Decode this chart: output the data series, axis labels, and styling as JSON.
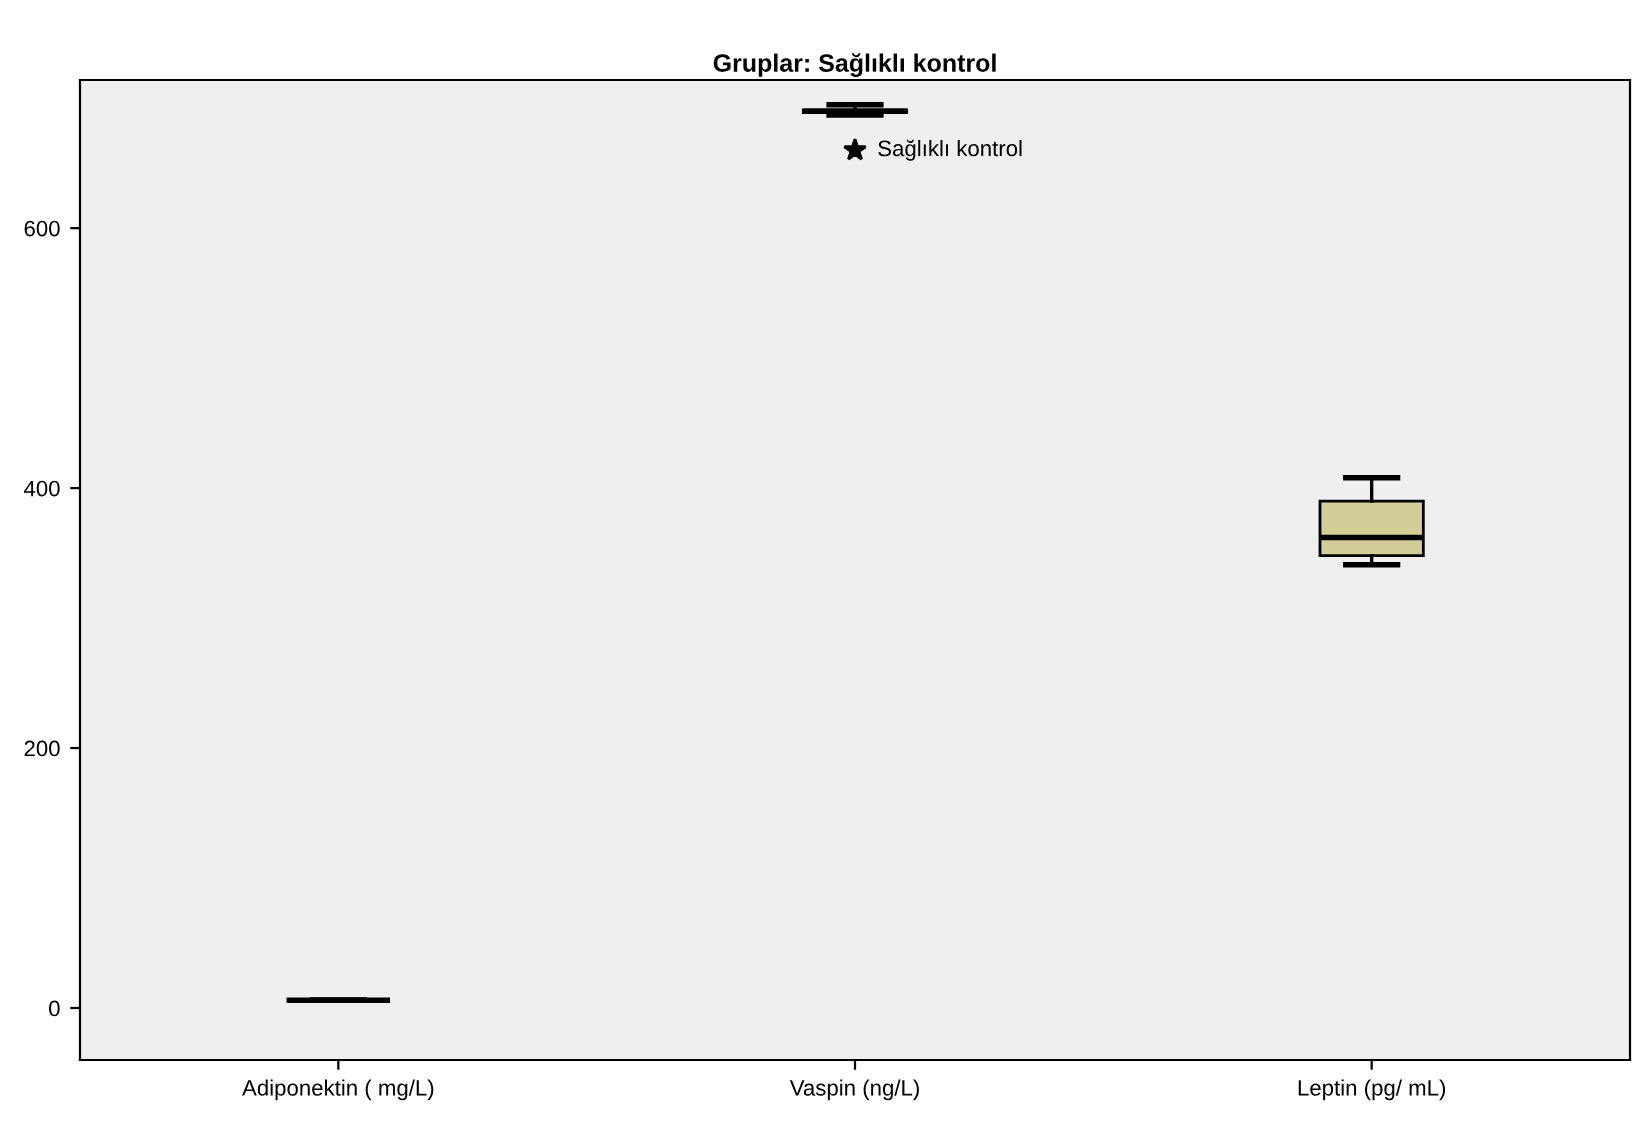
{
  "chart_data": {
    "type": "box",
    "title": "Gruplar: Sağlıklı kontrol",
    "categories": [
      "Adiponektin ( mg/L)",
      "Vaspin (ng/L)",
      "Leptin (pg/ mL)"
    ],
    "colors": [
      "#000000",
      "#000000",
      "#d3ce97"
    ],
    "boxes": [
      {
        "low": 6,
        "q1": 6,
        "median": 6,
        "q3": 6,
        "high": 6
      },
      {
        "low": 687,
        "q1": 689,
        "median": 690,
        "q3": 691,
        "high": 695,
        "outliers": [
          660
        ]
      },
      {
        "low": 341,
        "q1": 348,
        "median": 362,
        "q3": 390,
        "high": 408
      }
    ],
    "ylim": [
      -40,
      714
    ],
    "yticks": [
      0,
      200,
      400,
      600
    ],
    "grid": false,
    "annotations": [
      "Sağlıklı kontrol"
    ]
  }
}
